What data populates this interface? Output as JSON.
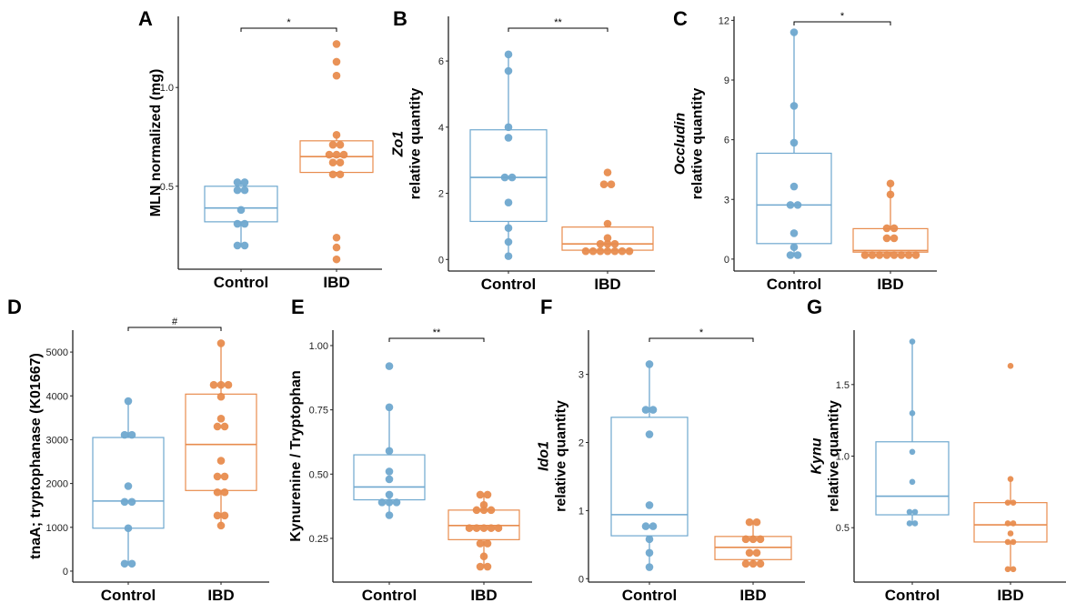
{
  "colors": {
    "control": "#6fa8cf",
    "ibd": "#e88c4e",
    "axis": "#222222"
  },
  "chart_data": [
    {
      "id": "A",
      "type": "box",
      "title": "A",
      "ylabel_lines": [
        {
          "text": "MLN normalized (mg)",
          "italic": false
        }
      ],
      "categories": [
        "Control",
        "IBD"
      ],
      "ylim": [
        0.08,
        1.36
      ],
      "yticks": [
        0.5,
        1.0
      ],
      "ytick_labels": [
        "0.5",
        "1.0"
      ],
      "significance": "*",
      "series": [
        {
          "name": "Control",
          "box": {
            "q1": 0.32,
            "median": 0.39,
            "q3": 0.5,
            "wlo": 0.2,
            "whi": 0.52
          },
          "points": [
            0.52,
            0.52,
            0.48,
            0.48,
            0.38,
            0.31,
            0.31,
            0.2,
            0.2
          ]
        },
        {
          "name": "IBD",
          "box": {
            "q1": 0.57,
            "median": 0.65,
            "q3": 0.73,
            "wlo": 0.56,
            "whi": 0.76
          },
          "points": [
            1.22,
            1.13,
            1.06,
            0.76,
            0.71,
            0.71,
            0.66,
            0.66,
            0.66,
            0.62,
            0.62,
            0.56,
            0.56,
            0.24,
            0.19,
            0.13
          ]
        }
      ]
    },
    {
      "id": "B",
      "type": "box",
      "title": "B",
      "ylabel_lines": [
        {
          "text": "Zo1",
          "italic": true
        },
        {
          "text": "relative quantity",
          "italic": false
        }
      ],
      "categories": [
        "Control",
        "IBD"
      ],
      "ylim": [
        -0.35,
        7.35
      ],
      "yticks": [
        0,
        2,
        4,
        6
      ],
      "ytick_labels": [
        "0",
        "2",
        "4",
        "6"
      ],
      "significance": "**",
      "series": [
        {
          "name": "Control",
          "box": {
            "q1": 1.15,
            "median": 2.48,
            "q3": 3.92,
            "wlo": 0.1,
            "whi": 6.2
          },
          "points": [
            6.2,
            5.7,
            4.0,
            3.68,
            2.48,
            2.48,
            1.72,
            0.95,
            0.53,
            0.1
          ]
        },
        {
          "name": "IBD",
          "box": {
            "q1": 0.28,
            "median": 0.47,
            "q3": 0.98,
            "wlo": 0.25,
            "whi": 1.08
          },
          "points": [
            2.63,
            2.27,
            2.27,
            1.08,
            0.65,
            0.47,
            0.47,
            0.47,
            0.25,
            0.25,
            0.25,
            0.25,
            0.25,
            0.25,
            0.25
          ]
        }
      ]
    },
    {
      "id": "C",
      "type": "box",
      "title": "C",
      "ylabel_lines": [
        {
          "text": "Occludin",
          "italic": true
        },
        {
          "text": "relative quantity",
          "italic": false
        }
      ],
      "categories": [
        "Control",
        "IBD"
      ],
      "ylim": [
        -0.6,
        12.2
      ],
      "yticks": [
        0,
        3,
        6,
        9,
        12
      ],
      "ytick_labels": [
        "0",
        "3",
        "6",
        "9",
        "12"
      ],
      "significance": "*",
      "series": [
        {
          "name": "Control",
          "box": {
            "q1": 0.78,
            "median": 2.72,
            "q3": 5.32,
            "wlo": 0.2,
            "whi": 11.4
          },
          "points": [
            11.4,
            7.7,
            5.85,
            3.65,
            2.72,
            2.72,
            1.3,
            0.6,
            0.2,
            0.2
          ]
        },
        {
          "name": "IBD",
          "box": {
            "q1": 0.35,
            "median": 0.43,
            "q3": 1.53,
            "wlo": 0.2,
            "whi": 3.8
          },
          "points": [
            3.8,
            3.25,
            1.55,
            1.55,
            1.05,
            1.05,
            0.2,
            0.2,
            0.2,
            0.2,
            0.2,
            0.2,
            0.2,
            0.2
          ]
        }
      ]
    },
    {
      "id": "D",
      "type": "box",
      "title": "D",
      "ylabel_lines": [
        {
          "text": "tnaA; tryptophanase (K01667)",
          "italic": false
        }
      ],
      "categories": [
        "Control",
        "IBD"
      ],
      "ylim": [
        -250,
        5500
      ],
      "yticks": [
        0,
        1000,
        2000,
        3000,
        4000,
        5000
      ],
      "ytick_labels": [
        "0",
        "1000",
        "2000",
        "3000",
        "4000",
        "5000"
      ],
      "significance": "#",
      "series": [
        {
          "name": "Control",
          "box": {
            "q1": 980,
            "median": 1600,
            "q3": 3050,
            "wlo": 170,
            "whi": 3880
          },
          "points": [
            3880,
            3110,
            3110,
            1940,
            1580,
            1580,
            980,
            170,
            170
          ]
        },
        {
          "name": "IBD",
          "box": {
            "q1": 1840,
            "median": 2890,
            "q3": 4040,
            "wlo": 1040,
            "whi": 5200
          },
          "points": [
            5200,
            4250,
            4250,
            4250,
            3980,
            3480,
            3300,
            3300,
            2520,
            2160,
            2160,
            1800,
            1800,
            1270,
            1270,
            1040
          ]
        }
      ]
    },
    {
      "id": "E",
      "type": "box",
      "title": "E",
      "ylabel_lines": [
        {
          "text": "Kynurenine / Tryptophan",
          "italic": false
        }
      ],
      "categories": [
        "Control",
        "IBD"
      ],
      "ylim": [
        0.08,
        1.06
      ],
      "yticks": [
        0.25,
        0.5,
        0.75,
        1.0
      ],
      "ytick_labels": [
        "0.25",
        "0.50",
        "0.75",
        "1.00"
      ],
      "significance": "**",
      "series": [
        {
          "name": "Control",
          "box": {
            "q1": 0.4,
            "median": 0.45,
            "q3": 0.575,
            "wlo": 0.34,
            "whi": 0.76
          },
          "points": [
            0.92,
            0.76,
            0.59,
            0.51,
            0.48,
            0.42,
            0.39,
            0.39,
            0.39,
            0.34
          ]
        },
        {
          "name": "IBD",
          "box": {
            "q1": 0.245,
            "median": 0.3,
            "q3": 0.36,
            "wlo": 0.14,
            "whi": 0.42
          },
          "points": [
            0.42,
            0.42,
            0.38,
            0.36,
            0.36,
            0.36,
            0.29,
            0.29,
            0.29,
            0.29,
            0.29,
            0.23,
            0.23,
            0.18,
            0.14,
            0.14
          ]
        }
      ]
    },
    {
      "id": "F",
      "type": "box",
      "title": "F",
      "ylabel_lines": [
        {
          "text": "Ido1",
          "italic": true
        },
        {
          "text": "relative quantity",
          "italic": false
        }
      ],
      "categories": [
        "Control",
        "IBD"
      ],
      "ylim": [
        -0.05,
        3.65
      ],
      "yticks": [
        0,
        1,
        2,
        3
      ],
      "ytick_labels": [
        "0",
        "1",
        "2",
        "3"
      ],
      "significance": "*",
      "series": [
        {
          "name": "Control",
          "box": {
            "q1": 0.63,
            "median": 0.94,
            "q3": 2.37,
            "wlo": 0.17,
            "whi": 3.15
          },
          "points": [
            3.15,
            2.48,
            2.48,
            2.12,
            1.08,
            0.77,
            0.77,
            0.58,
            0.38,
            0.17
          ]
        },
        {
          "name": "IBD",
          "box": {
            "q1": 0.28,
            "median": 0.46,
            "q3": 0.62,
            "wlo": 0.22,
            "whi": 0.83
          },
          "points": [
            0.83,
            0.83,
            0.58,
            0.58,
            0.58,
            0.38,
            0.38,
            0.22,
            0.22,
            0.22
          ]
        }
      ]
    },
    {
      "id": "G",
      "type": "box",
      "title": "G",
      "ylabel_lines": [
        {
          "text": "Kynu",
          "italic": true
        },
        {
          "text": "relative quantity",
          "italic": false
        }
      ],
      "categories": [
        "Control",
        "IBD"
      ],
      "ylim": [
        0.12,
        1.88
      ],
      "yticks": [
        0.5,
        1.0,
        1.5
      ],
      "ytick_labels": [
        "0.5",
        "1.0",
        "1.5"
      ],
      "significance": "",
      "series": [
        {
          "name": "Control",
          "box": {
            "q1": 0.59,
            "median": 0.72,
            "q3": 1.1,
            "wlo": 0.53,
            "whi": 1.8
          },
          "points": [
            1.8,
            1.3,
            1.03,
            0.82,
            0.61,
            0.61,
            0.53,
            0.53
          ]
        },
        {
          "name": "IBD",
          "box": {
            "q1": 0.4,
            "median": 0.52,
            "q3": 0.675,
            "wlo": 0.21,
            "whi": 0.84
          },
          "points": [
            1.63,
            0.84,
            0.675,
            0.675,
            0.53,
            0.53,
            0.46,
            0.4,
            0.4,
            0.21,
            0.21
          ]
        }
      ]
    }
  ]
}
